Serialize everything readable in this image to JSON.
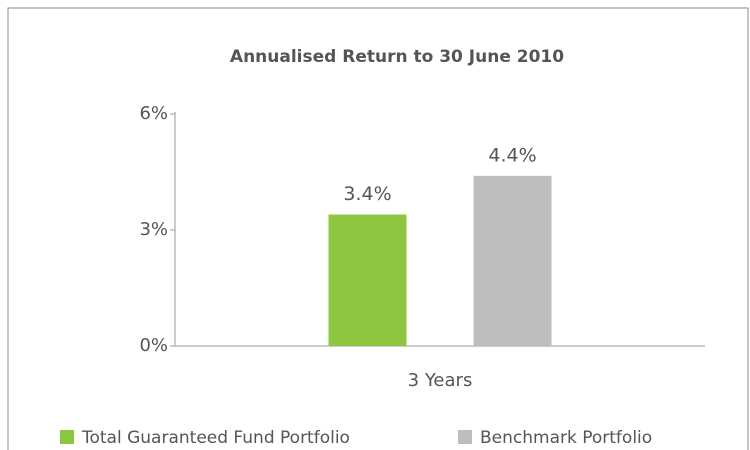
{
  "chart_data": {
    "type": "bar",
    "title": "Annualised Return to 30 June 2010",
    "categories": [
      "3 Years"
    ],
    "series": [
      {
        "name": "Total Guaranteed Fund Portfolio",
        "color": "#8dc63f",
        "values": [
          3.4
        ],
        "value_labels": [
          "3.4%"
        ]
      },
      {
        "name": "Benchmark Portfolio",
        "color": "#bcbec0",
        "values": [
          4.4
        ],
        "value_labels": [
          "4.4%"
        ]
      }
    ],
    "ylim": [
      0,
      6
    ],
    "yticks": [
      {
        "value": 0,
        "label": "0%"
      },
      {
        "value": 3,
        "label": "3%"
      },
      {
        "value": 6,
        "label": "6%"
      }
    ],
    "legend": "bottom"
  }
}
